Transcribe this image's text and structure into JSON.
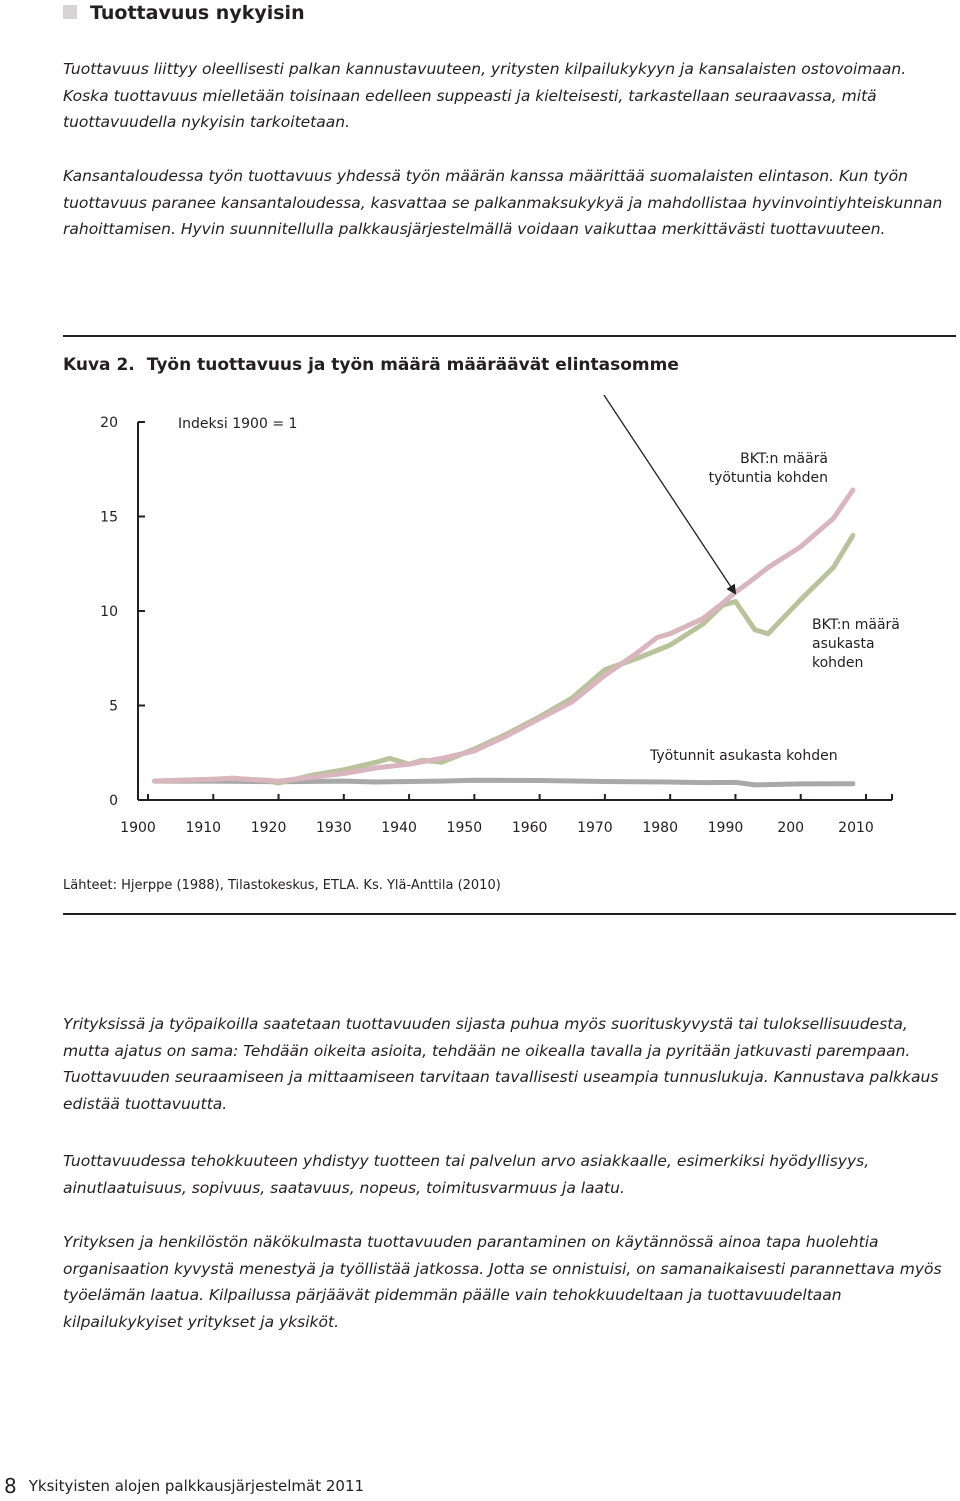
{
  "section": {
    "title": "Tuottavuus nykyisin"
  },
  "intro": {
    "p1": "Tuottavuus liittyy oleellisesti palkan kannustavuuteen, yritysten kilpailukykyyn ja kansalaisten ostovoimaan. Koska tuottavuus mielletään toisinaan edelleen suppeasti ja kielteisesti, tarkastellaan seuraavassa, mitä tuottavuudella nykyisin tarkoitetaan.",
    "p2": "Kansantaloudessa työn tuottavuus yhdessä työn määrän kanssa määrittää suomalaisten elintason. Kun työn tuottavuus paranee kansantaloudessa, kasvattaa se palkanmaksukykyä ja mahdollistaa hyvinvointiyhteiskunnan rahoittamisen. Hyvin suunnitellulla palkkausjärjestelmällä voidaan vaikuttaa merkittävästi tuottavuuteen."
  },
  "figure": {
    "label": "Kuva 2.",
    "title": "Työn tuottavuus ja työn määrä määräävät elintasomme",
    "source": "Lähteet: Hjerppe (1988), Tilastokeskus, ETLA. Ks. Ylä-Anttila (2010)"
  },
  "chart_data": {
    "type": "line",
    "title": "Työn tuottavuus ja työn määrä määräävät elintasomme",
    "index_note": "Indeksi 1900 = 1",
    "ylim": [
      0,
      20
    ],
    "xlim": [
      1900,
      2010
    ],
    "y_ticks": [
      "20",
      "15",
      "10",
      "5",
      "0"
    ],
    "x_ticks": [
      "1900",
      "1910",
      "1920",
      "1930",
      "1940",
      "1950",
      "1960",
      "1970",
      "1980",
      "1990",
      "200",
      "2010"
    ],
    "grid": false,
    "series": [
      {
        "name": "BKT:n määrä työtuntia kohden",
        "label_lines": [
          "BKT:n määrä",
          "työtuntia kohden"
        ],
        "color": "#d9b6be",
        "x": [
          1901,
          1905,
          1910,
          1913,
          1915,
          1918,
          1920,
          1925,
          1930,
          1935,
          1940,
          1945,
          1950,
          1955,
          1960,
          1965,
          1970,
          1975,
          1978,
          1980,
          1985,
          1988,
          1990,
          1992,
          1995,
          2000,
          2005,
          2008
        ],
        "y": [
          1.0,
          1.05,
          1.1,
          1.15,
          1.1,
          1.05,
          1.0,
          1.2,
          1.4,
          1.7,
          1.9,
          2.2,
          2.6,
          3.4,
          4.3,
          5.2,
          6.6,
          7.8,
          8.6,
          8.8,
          9.6,
          10.4,
          11.0,
          11.5,
          12.3,
          13.4,
          14.9,
          16.4
        ]
      },
      {
        "name": "BKT:n määrä asukasta kohden",
        "label_lines": [
          "BKT:n määrä",
          "asukasta",
          "kohden"
        ],
        "color": "#b9c39b",
        "x": [
          1901,
          1905,
          1910,
          1913,
          1915,
          1918,
          1920,
          1925,
          1930,
          1935,
          1937,
          1940,
          1942,
          1945,
          1950,
          1955,
          1960,
          1965,
          1970,
          1975,
          1980,
          1985,
          1988,
          1990,
          1993,
          1995,
          2000,
          2005,
          2008
        ],
        "y": [
          1.0,
          1.05,
          1.1,
          1.15,
          1.1,
          1.05,
          0.9,
          1.3,
          1.6,
          2.0,
          2.2,
          1.9,
          2.1,
          2.0,
          2.7,
          3.5,
          4.4,
          5.4,
          6.9,
          7.5,
          8.2,
          9.3,
          10.3,
          10.5,
          9.0,
          8.8,
          10.6,
          12.3,
          14.0
        ]
      },
      {
        "name": "Työtunnit asukasta kohden",
        "label_lines": [
          "Työtunnit asukasta  kohden"
        ],
        "color": "#a9a8a9",
        "x": [
          1901,
          1910,
          1920,
          1930,
          1935,
          1940,
          1945,
          1950,
          1960,
          1970,
          1980,
          1985,
          1990,
          1993,
          2000,
          2008
        ],
        "y": [
          1.0,
          1.0,
          0.97,
          1.0,
          0.95,
          0.98,
          1.0,
          1.05,
          1.03,
          0.98,
          0.95,
          0.92,
          0.93,
          0.8,
          0.85,
          0.86
        ]
      }
    ]
  },
  "body_text": {
    "p1": "Yrityksissä ja työpaikoilla saatetaan tuottavuuden sijasta puhua myös suorituskyvystä tai tuloksellisuudesta, mutta ajatus on sama: Tehdään oikeita asioita, tehdään ne oikealla tavalla ja pyritään jatkuvasti parempaan. Tuottavuuden seuraamiseen ja mittaamiseen tarvitaan tavallisesti useampia tunnuslukuja. Kannustava palkkaus edistää tuottavuutta.",
    "p2": "Tuottavuudessa tehokkuuteen yhdistyy tuotteen tai palvelun arvo asiakkaalle, esimerkiksi hyödyllisyys, ainutlaatuisuus, sopivuus, saatavuus, nopeus, toimitusvarmuus ja laatu.",
    "p3": "Yrityksen ja henkilöstön näkökulmasta tuottavuuden parantaminen on käytännössä ainoa tapa huolehtia organisaation kyvystä menestyä ja työllistää jatkossa. Jotta se onnistuisi, on samanaikaisesti parannettava myös työelämän laatua. Kilpailussa pärjäävät pidemmän päälle vain tehokkuudeltaan ja tuottavuudeltaan kilpailukykyiset yritykset ja yksiköt."
  },
  "footer": {
    "page_number": "8",
    "publication": "Yksityisten alojen palkkausjärjestelmät 2011"
  }
}
